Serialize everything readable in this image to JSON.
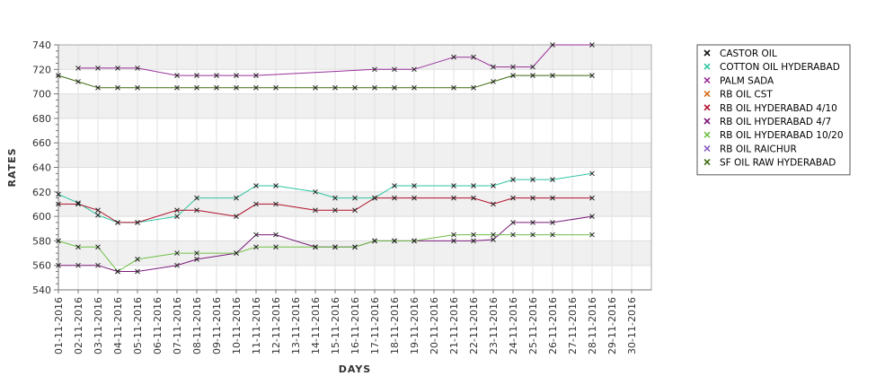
{
  "chart_data": {
    "type": "line",
    "xlabel": "DAYS",
    "ylabel": "RATES",
    "ylim": [
      540,
      740
    ],
    "yticks": [
      540,
      560,
      580,
      600,
      620,
      640,
      660,
      680,
      700,
      720,
      740
    ],
    "grid": true,
    "alternating_bands": true,
    "legend_position": "right",
    "categories": [
      "01-11-2016",
      "02-11-2016",
      "03-11-2016",
      "04-11-2016",
      "05-11-2016",
      "06-11-2016",
      "07-11-2016",
      "08-11-2016",
      "09-11-2016",
      "10-11-2016",
      "11-11-2016",
      "12-11-2016",
      "13-11-2016",
      "14-11-2016",
      "15-11-2016",
      "16-11-2016",
      "17-11-2016",
      "18-11-2016",
      "19-11-2016",
      "20-11-2016",
      "21-11-2016",
      "22-11-2016",
      "23-11-2016",
      "24-11-2016",
      "25-11-2016",
      "26-11-2016",
      "27-11-2016",
      "28-11-2016",
      "29-11-2016",
      "30-11-2016"
    ],
    "series": [
      {
        "name": "CASTOR OIL",
        "color": "#111111",
        "points": []
      },
      {
        "name": "COTTON OIL HYDERABAD",
        "color": "#2ec4a0",
        "points": [
          [
            0,
            618
          ],
          [
            1,
            611
          ],
          [
            2,
            601
          ],
          [
            3,
            595
          ],
          [
            4,
            595
          ],
          [
            6,
            600
          ],
          [
            7,
            615
          ],
          [
            9,
            615
          ],
          [
            10,
            625
          ],
          [
            11,
            625
          ],
          [
            13,
            620
          ],
          [
            14,
            615
          ],
          [
            15,
            615
          ],
          [
            16,
            615
          ],
          [
            17,
            625
          ],
          [
            18,
            625
          ],
          [
            20,
            625
          ],
          [
            21,
            625
          ],
          [
            22,
            625
          ],
          [
            23,
            630
          ],
          [
            24,
            630
          ],
          [
            25,
            630
          ],
          [
            27,
            635
          ]
        ]
      },
      {
        "name": "PALM SADA",
        "color": "#9a2f9a",
        "points": [
          [
            1,
            721
          ],
          [
            2,
            721
          ],
          [
            3,
            721
          ],
          [
            4,
            721
          ],
          [
            6,
            715
          ],
          [
            7,
            715
          ],
          [
            8,
            715
          ],
          [
            9,
            715
          ],
          [
            10,
            715
          ],
          [
            16,
            720
          ],
          [
            17,
            720
          ],
          [
            18,
            720
          ],
          [
            20,
            730
          ],
          [
            21,
            730
          ],
          [
            22,
            722
          ],
          [
            23,
            722
          ],
          [
            24,
            722
          ],
          [
            25,
            740
          ],
          [
            27,
            740
          ]
        ]
      },
      {
        "name": "RB OIL CST",
        "color": "#d46a1a",
        "points": []
      },
      {
        "name": "RB OIL HYDERABAD  4/10",
        "color": "#b0102a",
        "points": [
          [
            0,
            610
          ],
          [
            1,
            610
          ],
          [
            2,
            605
          ],
          [
            3,
            595
          ],
          [
            4,
            595
          ],
          [
            6,
            605
          ],
          [
            7,
            605
          ],
          [
            9,
            600
          ],
          [
            10,
            610
          ],
          [
            11,
            610
          ],
          [
            13,
            605
          ],
          [
            14,
            605
          ],
          [
            15,
            605
          ],
          [
            16,
            615
          ],
          [
            17,
            615
          ],
          [
            18,
            615
          ],
          [
            20,
            615
          ],
          [
            21,
            615
          ],
          [
            22,
            610
          ],
          [
            23,
            615
          ],
          [
            24,
            615
          ],
          [
            25,
            615
          ],
          [
            27,
            615
          ]
        ]
      },
      {
        "name": "RB OIL HYDERABAD  4/7",
        "color": "#7a1a7a",
        "points": [
          [
            0,
            560
          ],
          [
            1,
            560
          ],
          [
            2,
            560
          ],
          [
            3,
            555
          ],
          [
            4,
            555
          ],
          [
            6,
            560
          ],
          [
            7,
            565
          ],
          [
            9,
            570
          ],
          [
            10,
            585
          ],
          [
            11,
            585
          ],
          [
            13,
            575
          ],
          [
            14,
            575
          ],
          [
            15,
            575
          ],
          [
            16,
            580
          ],
          [
            17,
            580
          ],
          [
            18,
            580
          ],
          [
            20,
            580
          ],
          [
            21,
            580
          ],
          [
            22,
            581
          ],
          [
            23,
            595
          ],
          [
            24,
            595
          ],
          [
            25,
            595
          ],
          [
            27,
            600
          ]
        ]
      },
      {
        "name": "RB OIL HYDERABAD 10/20",
        "color": "#6fbf45",
        "points": [
          [
            0,
            580
          ],
          [
            1,
            575
          ],
          [
            2,
            575
          ],
          [
            3,
            555
          ],
          [
            4,
            565
          ],
          [
            6,
            570
          ],
          [
            7,
            570
          ],
          [
            9,
            570
          ],
          [
            10,
            575
          ],
          [
            11,
            575
          ],
          [
            13,
            575
          ],
          [
            14,
            575
          ],
          [
            15,
            575
          ],
          [
            16,
            580
          ],
          [
            17,
            580
          ],
          [
            18,
            580
          ],
          [
            20,
            585
          ],
          [
            21,
            585
          ],
          [
            22,
            585
          ],
          [
            23,
            585
          ],
          [
            24,
            585
          ],
          [
            25,
            585
          ],
          [
            27,
            585
          ]
        ]
      },
      {
        "name": "RB OIL RAICHUR",
        "color": "#8a5cc0",
        "points": []
      },
      {
        "name": "SF OIL RAW HYDERABAD",
        "color": "#3d6b0f",
        "points": [
          [
            0,
            715
          ],
          [
            1,
            710
          ],
          [
            2,
            705
          ],
          [
            3,
            705
          ],
          [
            4,
            705
          ],
          [
            6,
            705
          ],
          [
            7,
            705
          ],
          [
            8,
            705
          ],
          [
            9,
            705
          ],
          [
            10,
            705
          ],
          [
            11,
            705
          ],
          [
            13,
            705
          ],
          [
            14,
            705
          ],
          [
            15,
            705
          ],
          [
            16,
            705
          ],
          [
            17,
            705
          ],
          [
            18,
            705
          ],
          [
            20,
            705
          ],
          [
            21,
            705
          ],
          [
            22,
            710
          ],
          [
            23,
            715
          ],
          [
            24,
            715
          ],
          [
            25,
            715
          ],
          [
            27,
            715
          ]
        ]
      }
    ]
  }
}
